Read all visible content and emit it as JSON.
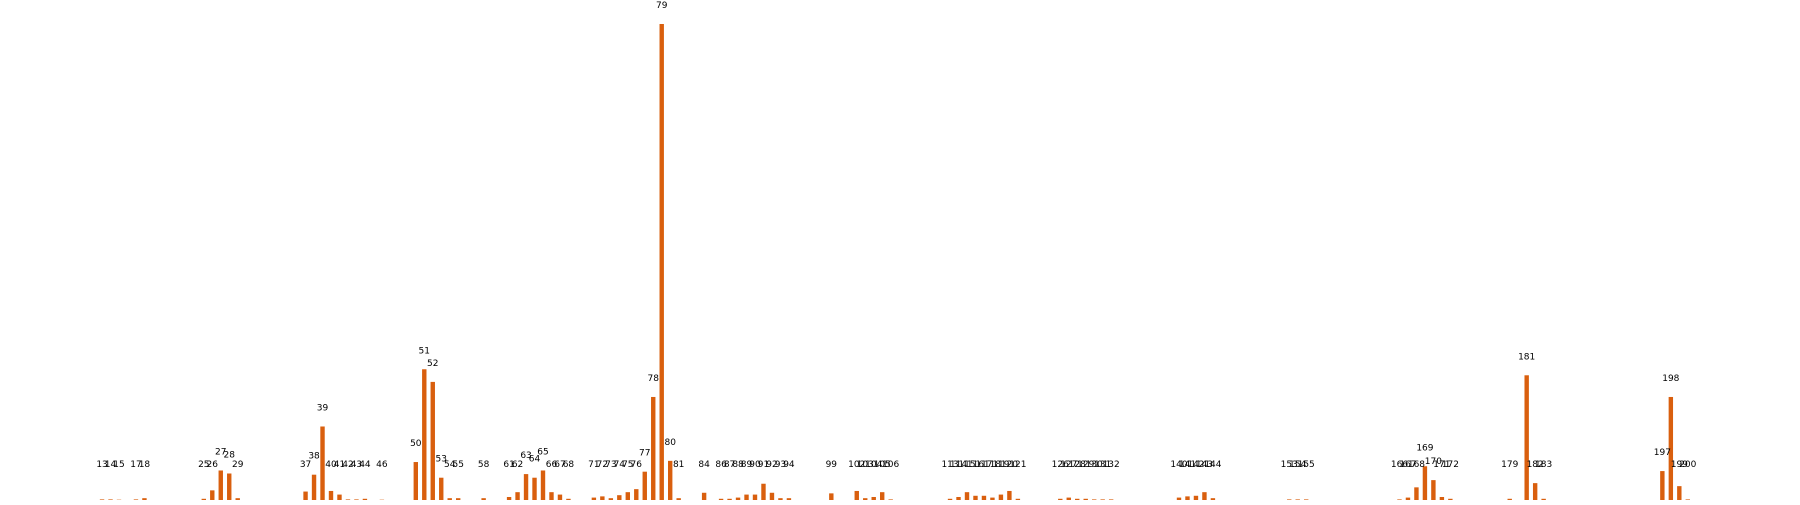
{
  "chart_data": {
    "type": "bar",
    "title": "",
    "xlabel": "",
    "ylabel": "",
    "grid": false,
    "legend": "none",
    "bar_color": "#D95F0E",
    "xlim": [
      0,
      206
    ],
    "ylim": [
      0,
      79
    ],
    "points": [
      {
        "x": 13,
        "y": 0.1
      },
      {
        "x": 14,
        "y": 0.1
      },
      {
        "x": 15,
        "y": 0.05
      },
      {
        "x": 17,
        "y": 0.1
      },
      {
        "x": 18,
        "y": 0.3
      },
      {
        "x": 25,
        "y": 0.2
      },
      {
        "x": 26,
        "y": 1.6
      },
      {
        "x": 27,
        "y": 4.9
      },
      {
        "x": 28,
        "y": 4.4
      },
      {
        "x": 29,
        "y": 0.3
      },
      {
        "x": 37,
        "y": 1.4
      },
      {
        "x": 38,
        "y": 4.2
      },
      {
        "x": 39,
        "y": 12.2
      },
      {
        "x": 40,
        "y": 1.5
      },
      {
        "x": 41,
        "y": 0.9
      },
      {
        "x": 42,
        "y": 0.1
      },
      {
        "x": 43,
        "y": 0.1
      },
      {
        "x": 44,
        "y": 0.2
      },
      {
        "x": 46,
        "y": 0.05
      },
      {
        "x": 50,
        "y": 6.3
      },
      {
        "x": 51,
        "y": 21.7
      },
      {
        "x": 52,
        "y": 19.6
      },
      {
        "x": 53,
        "y": 3.7
      },
      {
        "x": 54,
        "y": 0.3
      },
      {
        "x": 55,
        "y": 0.3
      },
      {
        "x": 58,
        "y": 0.3
      },
      {
        "x": 61,
        "y": 0.5
      },
      {
        "x": 62,
        "y": 1.3
      },
      {
        "x": 63,
        "y": 4.3
      },
      {
        "x": 64,
        "y": 3.7
      },
      {
        "x": 65,
        "y": 4.9
      },
      {
        "x": 66,
        "y": 1.3
      },
      {
        "x": 67,
        "y": 0.9
      },
      {
        "x": 68,
        "y": 0.2
      },
      {
        "x": 71,
        "y": 0.4
      },
      {
        "x": 72,
        "y": 0.6
      },
      {
        "x": 73,
        "y": 0.3
      },
      {
        "x": 74,
        "y": 0.8
      },
      {
        "x": 75,
        "y": 1.3
      },
      {
        "x": 76,
        "y": 1.8
      },
      {
        "x": 77,
        "y": 4.7
      },
      {
        "x": 78,
        "y": 17.1
      },
      {
        "x": 79,
        "y": 79.0
      },
      {
        "x": 80,
        "y": 6.5
      },
      {
        "x": 81,
        "y": 0.3
      },
      {
        "x": 84,
        "y": 1.2
      },
      {
        "x": 86,
        "y": 0.2
      },
      {
        "x": 87,
        "y": 0.2
      },
      {
        "x": 88,
        "y": 0.4
      },
      {
        "x": 89,
        "y": 0.9
      },
      {
        "x": 90,
        "y": 0.9
      },
      {
        "x": 91,
        "y": 2.7
      },
      {
        "x": 92,
        "y": 1.2
      },
      {
        "x": 93,
        "y": 0.3
      },
      {
        "x": 94,
        "y": 0.3
      },
      {
        "x": 99,
        "y": 1.1
      },
      {
        "x": 102,
        "y": 1.5
      },
      {
        "x": 103,
        "y": 0.3
      },
      {
        "x": 104,
        "y": 0.5
      },
      {
        "x": 105,
        "y": 1.3
      },
      {
        "x": 106,
        "y": 0.1
      },
      {
        "x": 113,
        "y": 0.2
      },
      {
        "x": 114,
        "y": 0.5
      },
      {
        "x": 115,
        "y": 1.3
      },
      {
        "x": 116,
        "y": 0.7
      },
      {
        "x": 117,
        "y": 0.7
      },
      {
        "x": 118,
        "y": 0.4
      },
      {
        "x": 119,
        "y": 0.9
      },
      {
        "x": 120,
        "y": 1.5
      },
      {
        "x": 121,
        "y": 0.2
      },
      {
        "x": 126,
        "y": 0.2
      },
      {
        "x": 127,
        "y": 0.4
      },
      {
        "x": 128,
        "y": 0.2
      },
      {
        "x": 129,
        "y": 0.2
      },
      {
        "x": 130,
        "y": 0.1
      },
      {
        "x": 131,
        "y": 0.1
      },
      {
        "x": 132,
        "y": 0.1
      },
      {
        "x": 140,
        "y": 0.4
      },
      {
        "x": 141,
        "y": 0.6
      },
      {
        "x": 142,
        "y": 0.7
      },
      {
        "x": 143,
        "y": 1.3
      },
      {
        "x": 144,
        "y": 0.3
      },
      {
        "x": 153,
        "y": 0.1
      },
      {
        "x": 154,
        "y": 0.1
      },
      {
        "x": 155,
        "y": 0.1
      },
      {
        "x": 166,
        "y": 0.1
      },
      {
        "x": 167,
        "y": 0.4
      },
      {
        "x": 168,
        "y": 2.1
      },
      {
        "x": 169,
        "y": 5.6
      },
      {
        "x": 170,
        "y": 3.3
      },
      {
        "x": 171,
        "y": 0.5
      },
      {
        "x": 172,
        "y": 0.2
      },
      {
        "x": 179,
        "y": 0.2
      },
      {
        "x": 181,
        "y": 20.7
      },
      {
        "x": 182,
        "y": 2.8
      },
      {
        "x": 183,
        "y": 0.2
      },
      {
        "x": 197,
        "y": 4.8
      },
      {
        "x": 198,
        "y": 17.1
      },
      {
        "x": 199,
        "y": 2.3
      },
      {
        "x": 200,
        "y": 0.1
      }
    ]
  }
}
